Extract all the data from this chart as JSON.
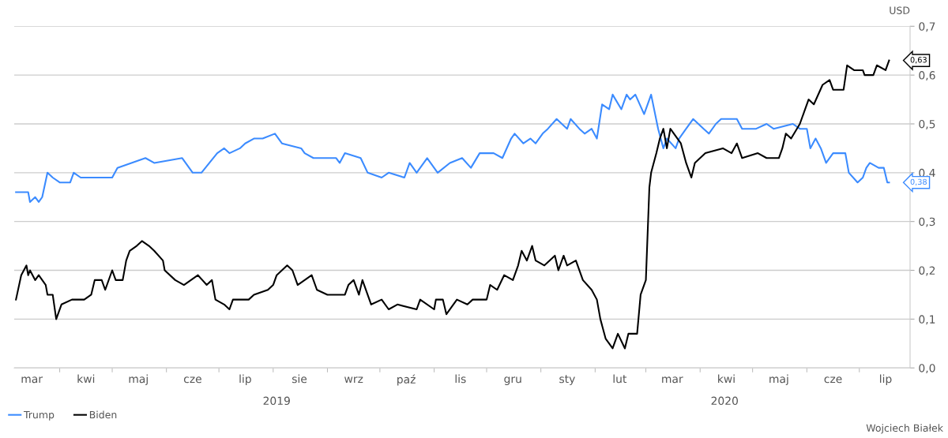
{
  "chart_data": {
    "type": "line",
    "ylabel": "USD",
    "legend": "bottom left",
    "grid": "y",
    "line_style": "solid",
    "marker": "none",
    "xlim": [
      "2019-03-06",
      "2020-07-30"
    ],
    "xticks": [
      {
        "value": "2019-03-16",
        "label": "mar"
      },
      {
        "value": "2019-04-01",
        "label": null
      },
      {
        "value": "2019-04-16",
        "label": "kwi"
      },
      {
        "value": "2019-05-01",
        "label": null
      },
      {
        "value": "2019-05-16",
        "label": "maj"
      },
      {
        "value": "2019-06-01",
        "label": null
      },
      {
        "value": "2019-06-16",
        "label": "cze"
      },
      {
        "value": "2019-07-01",
        "label": null
      },
      {
        "value": "2019-07-16",
        "label": "lip"
      },
      {
        "value": "2019-08-01",
        "label": null
      },
      {
        "value": "2019-08-16",
        "label": "sie"
      },
      {
        "value": "2019-09-01",
        "label": null
      },
      {
        "value": "2019-09-16",
        "label": "wrz"
      },
      {
        "value": "2019-10-01",
        "label": null
      },
      {
        "value": "2019-10-16",
        "label": "paź"
      },
      {
        "value": "2019-11-01",
        "label": null
      },
      {
        "value": "2019-11-16",
        "label": "lis"
      },
      {
        "value": "2019-12-01",
        "label": null
      },
      {
        "value": "2019-12-16",
        "label": "gru"
      },
      {
        "value": "2020-01-01",
        "label": null
      },
      {
        "value": "2020-01-16",
        "label": "sty"
      },
      {
        "value": "2020-02-01",
        "label": null
      },
      {
        "value": "2020-02-15",
        "label": "lut"
      },
      {
        "value": "2020-03-01",
        "label": null
      },
      {
        "value": "2020-03-16",
        "label": "mar"
      },
      {
        "value": "2020-04-01",
        "label": null
      },
      {
        "value": "2020-04-16",
        "label": "kwi"
      },
      {
        "value": "2020-05-01",
        "label": null
      },
      {
        "value": "2020-05-16",
        "label": "maj"
      },
      {
        "value": "2020-06-01",
        "label": null
      },
      {
        "value": "2020-06-16",
        "label": "cze"
      },
      {
        "value": "2020-07-01",
        "label": null
      },
      {
        "value": "2020-07-16",
        "label": "lip"
      }
    ],
    "ylim": [
      0,
      0.7
    ],
    "yticks": [
      {
        "value": 0,
        "label": "0,0"
      },
      {
        "value": 0.1,
        "label": "0,1"
      },
      {
        "value": 0.2,
        "label": "0,2"
      },
      {
        "value": 0.3,
        "label": "0,3"
      },
      {
        "value": 0.4,
        "label": "0,4"
      },
      {
        "value": 0.5,
        "label": "0,5"
      },
      {
        "value": 0.6,
        "label": "0,6"
      },
      {
        "value": 0.7,
        "label": "0,7"
      }
    ],
    "series": [
      {
        "name": "Trump",
        "color": "#3b8bff",
        "x": [
          "2019-03-07",
          "2019-03-14",
          "2019-03-15",
          "2019-03-18",
          "2019-03-20",
          "2019-03-22",
          "2019-03-25",
          "2019-03-28",
          "2019-04-01",
          "2019-04-07",
          "2019-04-09",
          "2019-04-13",
          "2019-05-01",
          "2019-05-04",
          "2019-05-12",
          "2019-05-20",
          "2019-05-25",
          "2019-06-10",
          "2019-06-16",
          "2019-06-21",
          "2019-06-30",
          "2019-07-04",
          "2019-07-07",
          "2019-07-13",
          "2019-07-16",
          "2019-07-21",
          "2019-07-26",
          "2019-08-02",
          "2019-08-06",
          "2019-08-17",
          "2019-08-19",
          "2019-08-24",
          "2019-09-06",
          "2019-09-08",
          "2019-09-11",
          "2019-09-20",
          "2019-09-24",
          "2019-10-02",
          "2019-10-06",
          "2019-10-15",
          "2019-10-18",
          "2019-10-22",
          "2019-10-28",
          "2019-11-03",
          "2019-11-10",
          "2019-11-17",
          "2019-11-22",
          "2019-11-27",
          "2019-12-05",
          "2019-12-10",
          "2019-12-15",
          "2019-12-17",
          "2019-12-22",
          "2019-12-26",
          "2019-12-29",
          "2020-01-02",
          "2020-01-05",
          "2020-01-10",
          "2020-01-16",
          "2020-01-18",
          "2020-01-23",
          "2020-01-26",
          "2020-01-30",
          "2020-02-02",
          "2020-02-05",
          "2020-02-09",
          "2020-02-11",
          "2020-02-16",
          "2020-02-19",
          "2020-02-21",
          "2020-02-24",
          "2020-02-29",
          "2020-03-03",
          "2020-03-04",
          "2020-03-08",
          "2020-03-11",
          "2020-03-13",
          "2020-03-18",
          "2020-03-20",
          "2020-03-24",
          "2020-03-28",
          "2020-04-03",
          "2020-04-06",
          "2020-04-10",
          "2020-04-13",
          "2020-04-22",
          "2020-04-25",
          "2020-05-03",
          "2020-05-09",
          "2020-05-13",
          "2020-05-24",
          "2020-05-28",
          "2020-06-01",
          "2020-06-03",
          "2020-06-06",
          "2020-06-09",
          "2020-06-12",
          "2020-06-16",
          "2020-06-23",
          "2020-06-25",
          "2020-06-30",
          "2020-07-03",
          "2020-07-05",
          "2020-07-07",
          "2020-07-12",
          "2020-07-15",
          "2020-07-17",
          "2020-07-18"
        ],
        "values": [
          0.36,
          0.36,
          0.34,
          0.35,
          0.34,
          0.35,
          0.4,
          0.39,
          0.38,
          0.38,
          0.4,
          0.39,
          0.39,
          0.41,
          0.42,
          0.43,
          0.42,
          0.43,
          0.4,
          0.4,
          0.44,
          0.45,
          0.44,
          0.45,
          0.46,
          0.47,
          0.47,
          0.48,
          0.46,
          0.45,
          0.44,
          0.43,
          0.43,
          0.42,
          0.44,
          0.43,
          0.4,
          0.39,
          0.4,
          0.39,
          0.42,
          0.4,
          0.43,
          0.4,
          0.42,
          0.43,
          0.41,
          0.44,
          0.44,
          0.43,
          0.47,
          0.48,
          0.46,
          0.47,
          0.46,
          0.48,
          0.49,
          0.51,
          0.49,
          0.51,
          0.49,
          0.48,
          0.49,
          0.47,
          0.54,
          0.53,
          0.56,
          0.53,
          0.56,
          0.55,
          0.56,
          0.52,
          0.55,
          0.56,
          0.49,
          0.45,
          0.47,
          0.45,
          0.47,
          0.49,
          0.51,
          0.49,
          0.48,
          0.5,
          0.51,
          0.51,
          0.49,
          0.49,
          0.5,
          0.49,
          0.5,
          0.49,
          0.49,
          0.45,
          0.47,
          0.45,
          0.42,
          0.44,
          0.44,
          0.4,
          0.38,
          0.39,
          0.41,
          0.42,
          0.41,
          0.41,
          0.38,
          0.38
        ]
      },
      {
        "name": "Biden",
        "color": "#000000",
        "x": [
          "2019-03-07",
          "2019-03-10",
          "2019-03-13",
          "2019-03-14",
          "2019-03-15",
          "2019-03-18",
          "2019-03-20",
          "2019-03-24",
          "2019-03-25",
          "2019-03-28",
          "2019-03-30",
          "2019-04-02",
          "2019-04-08",
          "2019-04-15",
          "2019-04-19",
          "2019-04-21",
          "2019-04-25",
          "2019-04-27",
          "2019-05-01",
          "2019-05-03",
          "2019-05-07",
          "2019-05-09",
          "2019-05-11",
          "2019-05-15",
          "2019-05-18",
          "2019-05-22",
          "2019-05-25",
          "2019-05-30",
          "2019-05-31",
          "2019-06-06",
          "2019-06-11",
          "2019-06-19",
          "2019-06-24",
          "2019-06-27",
          "2019-06-29",
          "2019-07-04",
          "2019-07-07",
          "2019-07-09",
          "2019-07-18",
          "2019-07-21",
          "2019-07-29",
          "2019-08-01",
          "2019-08-03",
          "2019-08-09",
          "2019-08-12",
          "2019-08-15",
          "2019-08-23",
          "2019-08-26",
          "2019-09-01",
          "2019-09-11",
          "2019-09-13",
          "2019-09-16",
          "2019-09-19",
          "2019-09-21",
          "2019-09-26",
          "2019-10-02",
          "2019-10-06",
          "2019-10-11",
          "2019-10-22",
          "2019-10-24",
          "2019-11-01",
          "2019-11-02",
          "2019-11-06",
          "2019-11-08",
          "2019-11-14",
          "2019-11-20",
          "2019-11-23",
          "2019-12-01",
          "2019-12-03",
          "2019-12-07",
          "2019-12-11",
          "2019-12-16",
          "2019-12-19",
          "2019-12-21",
          "2019-12-24",
          "2019-12-27",
          "2019-12-29",
          "2020-01-03",
          "2020-01-09",
          "2020-01-11",
          "2020-01-14",
          "2020-01-16",
          "2020-01-21",
          "2020-01-25",
          "2020-01-30",
          "2020-02-02",
          "2020-02-04",
          "2020-02-07",
          "2020-02-11",
          "2020-02-14",
          "2020-02-18",
          "2020-02-20",
          "2020-02-25",
          "2020-02-27",
          "2020-03-01",
          "2020-03-03",
          "2020-03-04",
          "2020-03-07",
          "2020-03-09",
          "2020-03-11",
          "2020-03-13",
          "2020-03-15",
          "2020-03-21",
          "2020-03-24",
          "2020-03-27",
          "2020-03-29",
          "2020-04-04",
          "2020-04-14",
          "2020-04-19",
          "2020-04-22",
          "2020-04-25",
          "2020-05-04",
          "2020-05-09",
          "2020-05-16",
          "2020-05-18",
          "2020-05-20",
          "2020-05-23",
          "2020-05-28",
          "2020-06-02",
          "2020-06-05",
          "2020-06-10",
          "2020-06-14",
          "2020-06-16",
          "2020-06-22",
          "2020-06-24",
          "2020-06-28",
          "2020-07-03",
          "2020-07-04",
          "2020-07-09",
          "2020-07-11",
          "2020-07-16",
          "2020-07-18"
        ],
        "values": [
          0.14,
          0.19,
          0.21,
          0.19,
          0.2,
          0.18,
          0.19,
          0.17,
          0.15,
          0.15,
          0.1,
          0.13,
          0.14,
          0.14,
          0.15,
          0.18,
          0.18,
          0.16,
          0.2,
          0.18,
          0.18,
          0.22,
          0.24,
          0.25,
          0.26,
          0.25,
          0.24,
          0.22,
          0.2,
          0.18,
          0.17,
          0.19,
          0.17,
          0.18,
          0.14,
          0.13,
          0.12,
          0.14,
          0.14,
          0.15,
          0.16,
          0.17,
          0.19,
          0.21,
          0.2,
          0.17,
          0.19,
          0.16,
          0.15,
          0.15,
          0.17,
          0.18,
          0.15,
          0.18,
          0.13,
          0.14,
          0.12,
          0.13,
          0.12,
          0.14,
          0.12,
          0.14,
          0.14,
          0.11,
          0.14,
          0.13,
          0.14,
          0.14,
          0.17,
          0.16,
          0.19,
          0.18,
          0.21,
          0.24,
          0.22,
          0.25,
          0.22,
          0.21,
          0.23,
          0.2,
          0.23,
          0.21,
          0.22,
          0.18,
          0.16,
          0.14,
          0.1,
          0.06,
          0.04,
          0.07,
          0.04,
          0.07,
          0.07,
          0.15,
          0.18,
          0.37,
          0.4,
          0.44,
          0.47,
          0.49,
          0.45,
          0.49,
          0.46,
          0.42,
          0.39,
          0.42,
          0.44,
          0.45,
          0.44,
          0.46,
          0.43,
          0.44,
          0.43,
          0.43,
          0.45,
          0.48,
          0.47,
          0.5,
          0.55,
          0.54,
          0.58,
          0.59,
          0.57,
          0.57,
          0.62,
          0.61,
          0.61,
          0.6,
          0.6,
          0.62,
          0.61,
          0.63
        ]
      }
    ],
    "annotations": [
      {
        "text": "0,63",
        "x": "2020-07-18",
        "y": 0.63
      },
      {
        "text": "0,38",
        "x": "2020-07-18",
        "y": 0.38
      },
      "2019",
      "2020",
      "Wojciech Białek"
    ]
  }
}
